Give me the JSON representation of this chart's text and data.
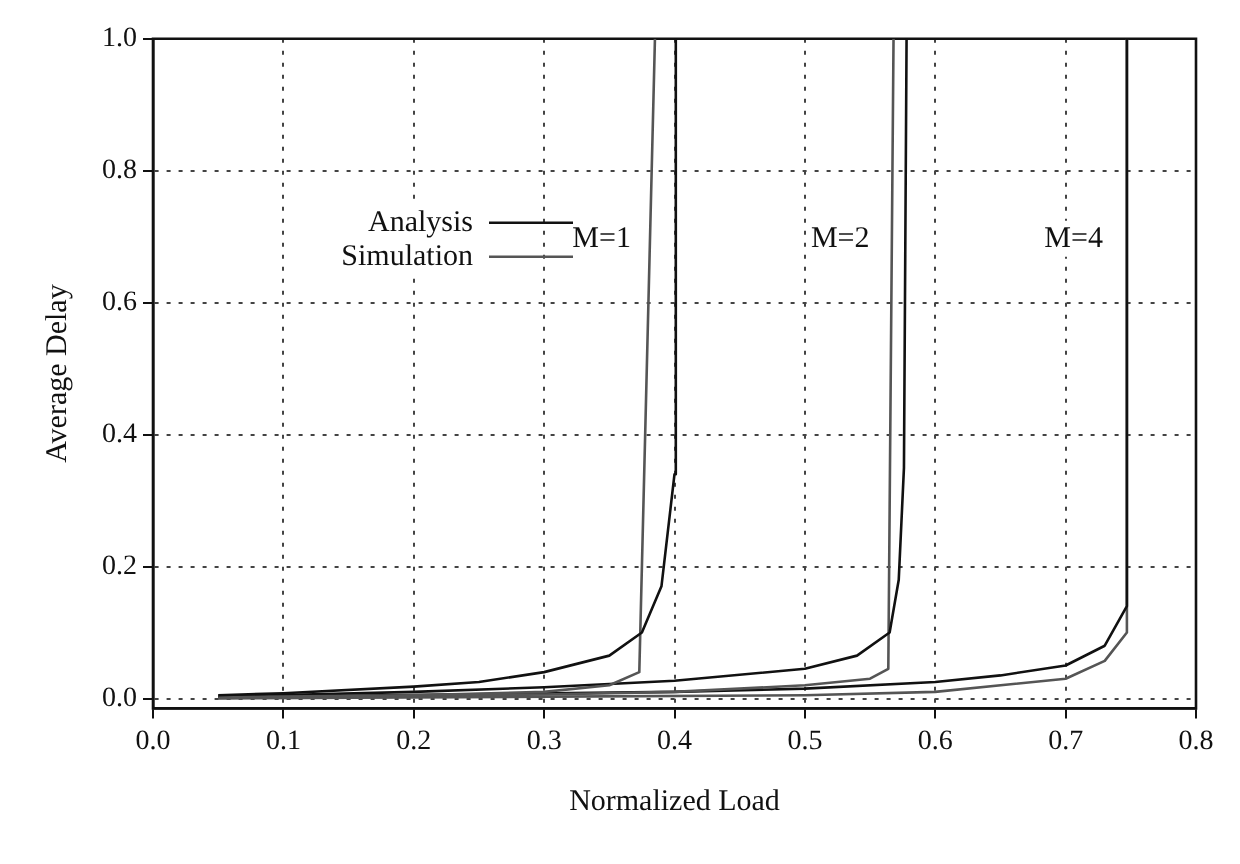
{
  "chart_data": {
    "type": "line",
    "xlabel": "Normalized Load",
    "ylabel": "Average Delay",
    "xlim": [
      0,
      0.8
    ],
    "ylim": [
      -0.015,
      1.0
    ],
    "xticks": [
      {
        "value": 0,
        "label": "0.0"
      },
      {
        "value": 0.1,
        "label": "0.1"
      },
      {
        "value": 0.2,
        "label": "0.2"
      },
      {
        "value": 0.3,
        "label": "0.3"
      },
      {
        "value": 0.4,
        "label": "0.4"
      },
      {
        "value": 0.5,
        "label": "0.5"
      },
      {
        "value": 0.6,
        "label": "0.6"
      },
      {
        "value": 0.7,
        "label": "0.7"
      },
      {
        "value": 0.8,
        "label": "0.8"
      }
    ],
    "yticks": [
      {
        "value": 0,
        "label": "0.0"
      },
      {
        "value": 0.2,
        "label": "0.2"
      },
      {
        "value": 0.4,
        "label": "0.4"
      },
      {
        "value": 0.6,
        "label": "0.6"
      },
      {
        "value": 0.8,
        "label": "0.8"
      },
      {
        "value": 1.0,
        "label": "1.0"
      }
    ],
    "grid": true,
    "legend": "top left",
    "marker": "none",
    "line_style": "solid",
    "series": [
      {
        "name": "Analysis",
        "color": "#111111",
        "x": [
          0.05,
          0.1,
          0.2,
          0.25,
          0.3,
          0.35,
          0.375,
          0.39,
          0.4,
          0.401
        ],
        "values": [
          0.005,
          0.008,
          0.018,
          0.025,
          0.04,
          0.065,
          0.1,
          0.17,
          0.34,
          1.0
        ]
      },
      {
        "name": "Simulation",
        "color": "#555555",
        "x": [
          0.05,
          0.2,
          0.3,
          0.35,
          0.373,
          0.385
        ],
        "values": [
          0.002,
          0.005,
          0.01,
          0.02,
          0.04,
          1.0
        ]
      },
      {
        "color": "#111111",
        "x": [
          0.05,
          0.2,
          0.3,
          0.4,
          0.5,
          0.54,
          0.565,
          0.572,
          0.576,
          0.578
        ],
        "values": [
          0.003,
          0.01,
          0.017,
          0.027,
          0.045,
          0.065,
          0.1,
          0.18,
          0.35,
          1.0
        ]
      },
      {
        "color": "#555555",
        "x": [
          0.05,
          0.3,
          0.4,
          0.5,
          0.55,
          0.564,
          0.568
        ],
        "values": [
          0.001,
          0.006,
          0.01,
          0.02,
          0.03,
          0.045,
          1.0
        ]
      },
      {
        "color": "#111111",
        "x": [
          0.05,
          0.4,
          0.5,
          0.6,
          0.65,
          0.7,
          0.73,
          0.747,
          0.747
        ],
        "values": [
          0.002,
          0.01,
          0.015,
          0.025,
          0.035,
          0.05,
          0.08,
          0.14,
          1.0
        ]
      },
      {
        "color": "#555555",
        "x": [
          0.05,
          0.5,
          0.6,
          0.7,
          0.73,
          0.747,
          0.747
        ],
        "values": [
          0.0,
          0.005,
          0.01,
          0.03,
          0.057,
          0.1,
          1.0
        ]
      }
    ],
    "annotations": [
      "M=1",
      "M=2",
      "M=4"
    ]
  }
}
